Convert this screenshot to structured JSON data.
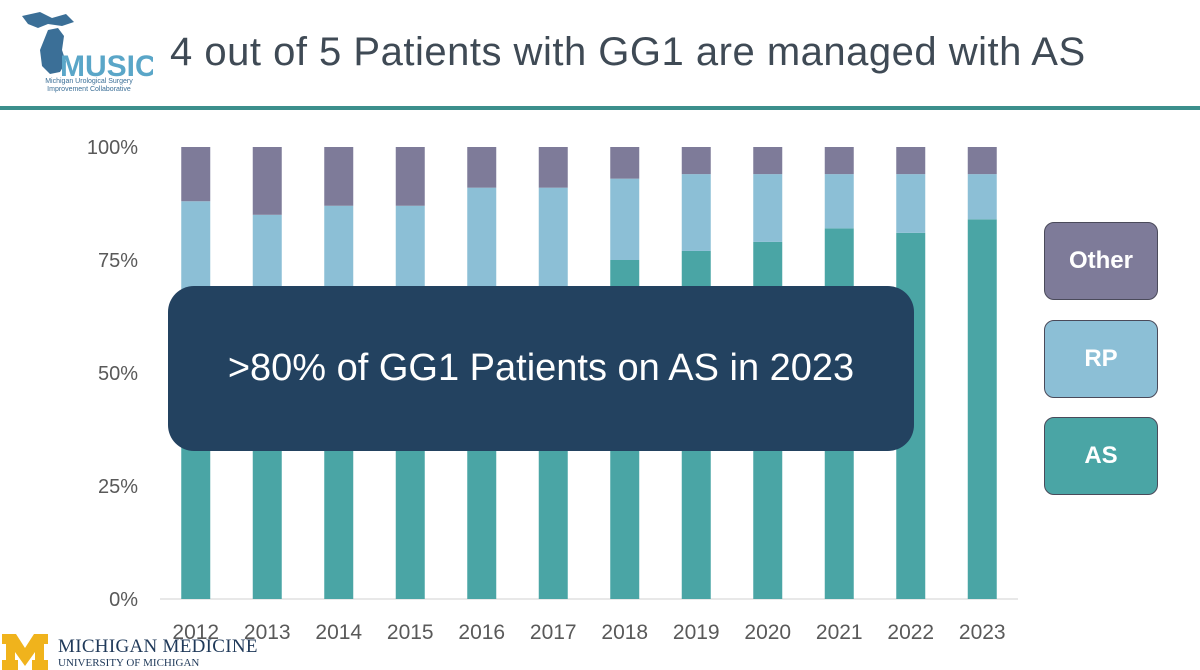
{
  "slide": {
    "title": "4 out of 5 Patients with GG1 are managed with AS",
    "callout": ">80% of GG1 Patients on AS in 2023"
  },
  "logo": {
    "name": "MUSIC",
    "subtitle_line1": "Michigan Urological Surgery",
    "subtitle_line2": "Improvement Collaborative"
  },
  "footer": {
    "name": "MICHIGAN MEDICINE",
    "subtitle": "UNIVERSITY OF MICHIGAN"
  },
  "colors": {
    "as": "#4aa5a5",
    "rp": "#8cbfd6",
    "other": "#7e7b99",
    "callout": "#234260",
    "divider": "#3c8f8c",
    "michigan_maize": "#f0b31c"
  },
  "legend": [
    {
      "label": "Other",
      "series": "Other"
    },
    {
      "label": "RP",
      "series": "RP"
    },
    {
      "label": "AS",
      "series": "AS"
    }
  ],
  "chart_data": {
    "type": "bar",
    "stacked": true,
    "categories": [
      "2012",
      "2013",
      "2014",
      "2015",
      "2016",
      "2017",
      "2018",
      "2019",
      "2020",
      "2021",
      "2022",
      "2023"
    ],
    "series": [
      {
        "name": "AS",
        "values": [
          43,
          44,
          46,
          46,
          48,
          51,
          75,
          77,
          79,
          82,
          81,
          84
        ]
      },
      {
        "name": "RP",
        "values": [
          45,
          41,
          41,
          41,
          43,
          40,
          18,
          17,
          15,
          12,
          13,
          10
        ]
      },
      {
        "name": "Other",
        "values": [
          12,
          15,
          13,
          13,
          9,
          9,
          7,
          6,
          6,
          6,
          6,
          6
        ]
      }
    ],
    "yticks": [
      "0%",
      "25%",
      "50%",
      "75%",
      "100%"
    ],
    "ylim": [
      0,
      100
    ],
    "legend_position": "right",
    "grid": false
  }
}
